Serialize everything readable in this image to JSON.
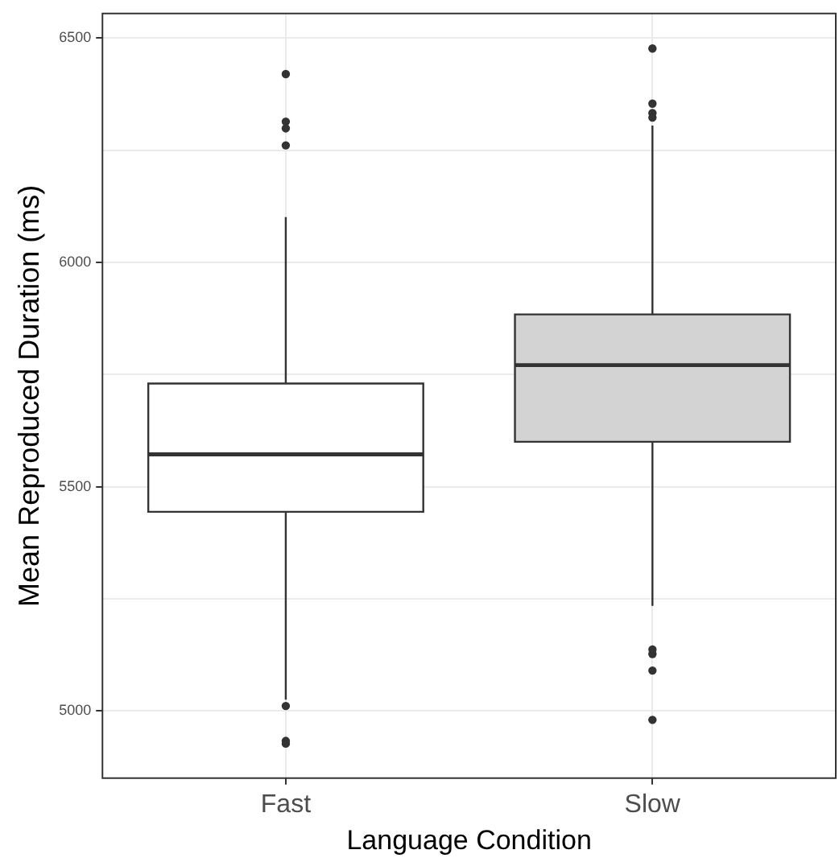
{
  "chart_data": {
    "type": "box",
    "xlabel": "Language Condition",
    "ylabel": "Mean Reproduced Duration (ms)",
    "categories": [
      "Fast",
      "Slow"
    ],
    "colors": [
      "#ffffff",
      "#d3d3d3"
    ],
    "boxes": [
      {
        "low": 5025,
        "q1": 5444,
        "median": 5572,
        "q3": 5730,
        "high": 6101,
        "outliers": [
          6420,
          6314,
          6299,
          6261,
          5011,
          4933,
          4927
        ]
      },
      {
        "low": 5234,
        "q1": 5600,
        "median": 5771,
        "q3": 5884,
        "high": 6305,
        "outliers": [
          6477,
          6354,
          6333,
          6323,
          5137,
          5127,
          5090,
          4980
        ]
      }
    ],
    "ylim": [
      4850,
      6555
    ],
    "yticks": [
      5000,
      {
        "value": 5250,
        "label": null
      },
      5500,
      {
        "value": 5750,
        "label": null
      },
      6000,
      {
        "value": 6250,
        "label": null
      },
      6500
    ],
    "grid": true
  }
}
